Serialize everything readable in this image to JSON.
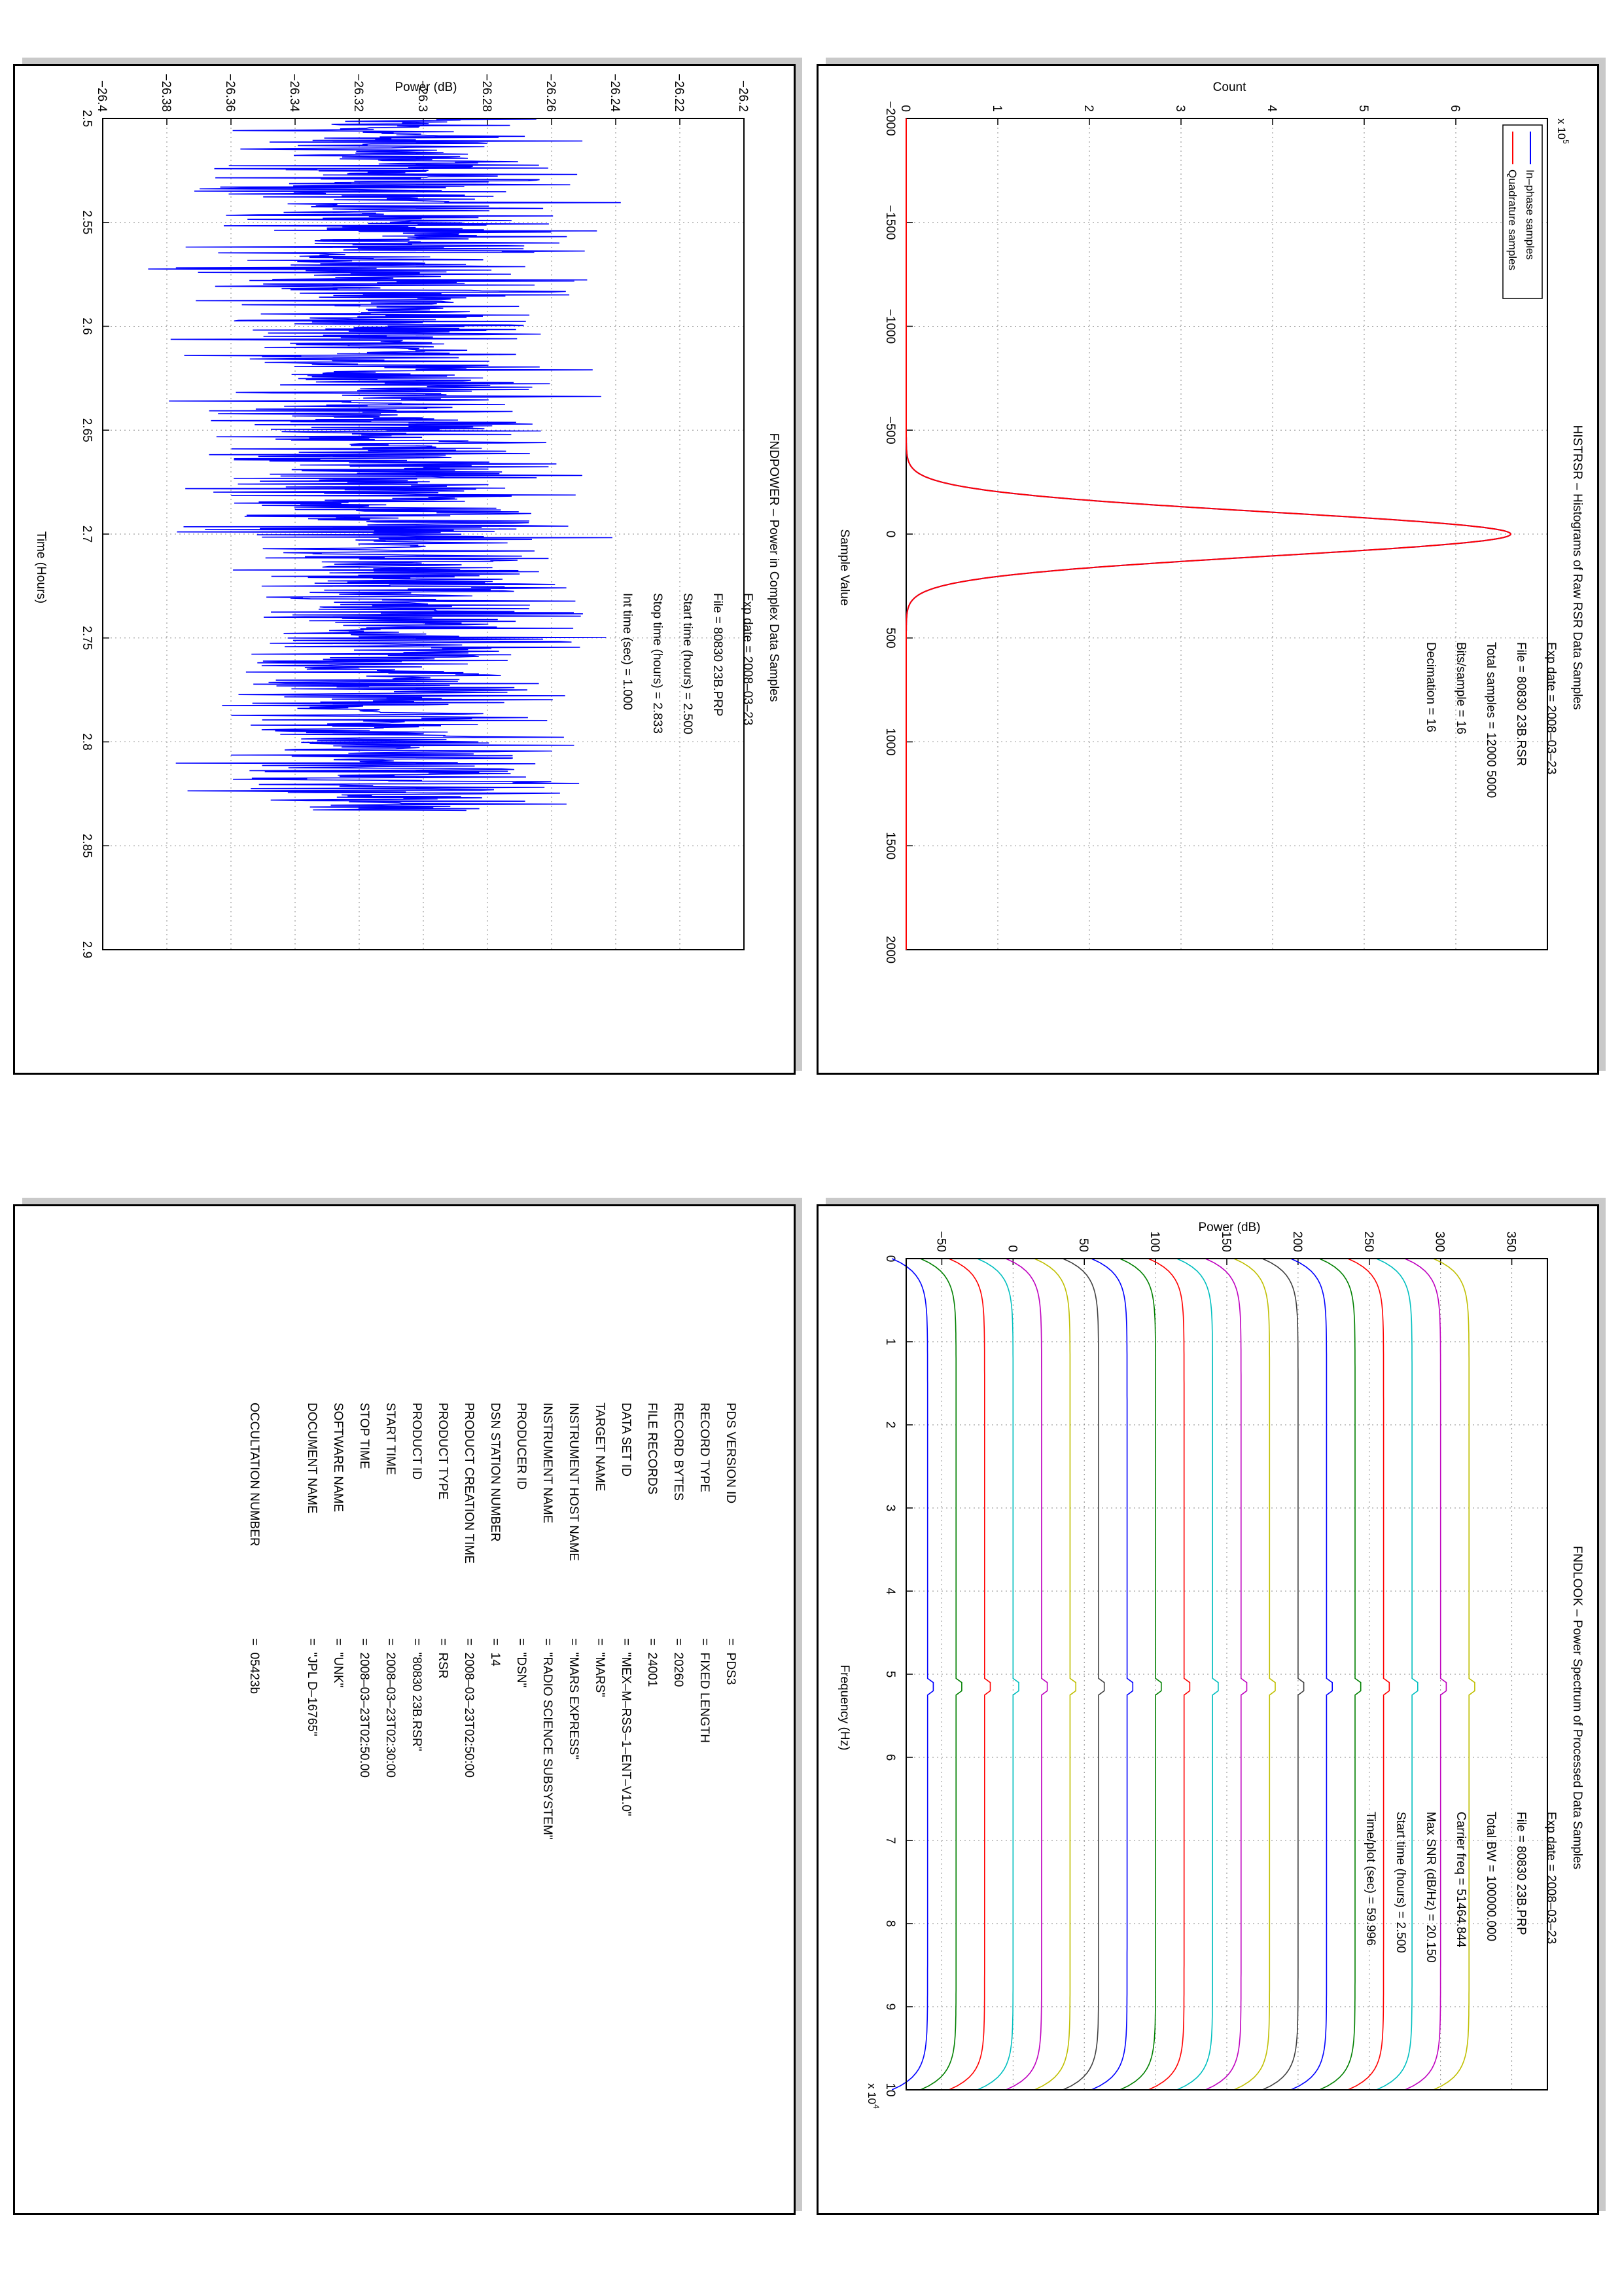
{
  "colors": {
    "inphase": "#0000ff",
    "quadrature": "#ff0000",
    "power": "#0000ff",
    "spectrum_series": [
      "#0000ff",
      "#008000",
      "#ff0000",
      "#00bfbf",
      "#bf00bf",
      "#bfbf00",
      "#404040",
      "#0000ff",
      "#008000",
      "#ff0000",
      "#00bfbf",
      "#bf00bf",
      "#bfbf00",
      "#404040",
      "#0000ff",
      "#008000",
      "#ff0000",
      "#00bfbf",
      "#bf00bf",
      "#bfbf00"
    ]
  },
  "histogram": {
    "title": "HISTRSR – Histograms of Raw RSR Data Samples",
    "xlabel": "Sample Value",
    "ylabel": "Count",
    "exponent": "x 10",
    "exponent_power": "5",
    "xticks": [
      "−2000",
      "−1500",
      "−1000",
      "−500",
      "0",
      "500",
      "1000",
      "1500",
      "2000"
    ],
    "yticks": [
      "0",
      "1",
      "2",
      "3",
      "4",
      "5",
      "6"
    ],
    "legend": [
      "In–phase samples",
      "Quadrature samples"
    ],
    "info": [
      "Exp date = 2008–03–23",
      "File = 80830 23B.RSR",
      "Total samples =  12000 5000",
      "Bits/sample   =        16",
      "Decimation    =        16"
    ]
  },
  "power_plot": {
    "title": "FNDPOWER – Power in Complex Data Samples",
    "xlabel": "Time (Hours)",
    "ylabel": "Power (dB)",
    "xticks": [
      "2.5",
      "2.55",
      "2.6",
      "2.65",
      "2.7",
      "2.75",
      "2.8",
      "2.85",
      "2.9"
    ],
    "yticks": [
      "−26.4",
      "−26.38",
      "−26.36",
      "−26.34",
      "−26.32",
      "−26.3",
      "−26.28",
      "−26.26",
      "−26.24",
      "−26.22",
      "−26.2"
    ],
    "info": [
      "Exp date = 2008–03–23",
      "File = 80830 23B.PRP",
      "Start time (hours) =   2.500",
      "Stop time (hours) =   2.833",
      "Int time (sec) =      1.000"
    ]
  },
  "spectrum": {
    "title": "FNDLOOK – Power Spectrum of Processed Data Samples",
    "xlabel": "Frequency (Hz)",
    "ylabel": "Power (dB)",
    "exponent": "x 10",
    "exponent_power": "4",
    "xticks": [
      "0",
      "1",
      "2",
      "3",
      "4",
      "5",
      "6",
      "7",
      "8",
      "9",
      "10"
    ],
    "yticks": [
      "−50",
      "0",
      "50",
      "100",
      "150",
      "200",
      "250",
      "300",
      "350"
    ],
    "info": [
      "Exp date = 2008–03–23",
      "File = 80830 23B.PRP",
      "Total BW =    100000.000",
      "Carrier freq =  51464.844",
      "Max SNR (dB/Hz) =   20.150",
      "Start time (hours) =   2.500",
      "Time/plot (sec) =      59.996"
    ]
  },
  "label_table": {
    "rows": [
      {
        "key": "PDS VERSION ID",
        "val": "=  PDS3"
      },
      {
        "key": "RECORD TYPE",
        "val": "=  FIXED LENGTH"
      },
      {
        "key": "RECORD BYTES",
        "val": "=  20260"
      },
      {
        "key": "FILE RECORDS",
        "val": "=  24001"
      },
      {
        "key": "DATA SET ID",
        "val": "=  \"MEX–M–RSS–1–ENT–V1.0\""
      },
      {
        "key": "TARGET NAME",
        "val": "=  \"MARS\""
      },
      {
        "key": "INSTRUMENT HOST NAME",
        "val": "=  \"MARS EXPRESS\""
      },
      {
        "key": "INSTRUMENT NAME",
        "val": "=  \"RADIO SCIENCE SUBSYSTEM\""
      },
      {
        "key": "PRODUCER ID",
        "val": "=  \"DSN\""
      },
      {
        "key": "DSN STATION NUMBER",
        "val": "=  14"
      },
      {
        "key": "PRODUCT CREATION TIME",
        "val": "=  2008–03–23T02:50:00"
      },
      {
        "key": "PRODUCT TYPE",
        "val": "=  RSR"
      },
      {
        "key": "PRODUCT ID",
        "val": "=  \"80830 23B.RSR\""
      },
      {
        "key": "START TIME",
        "val": "=  2008–03–23T02:30:00"
      },
      {
        "key": "STOP TIME",
        "val": "=  2008–03–23T02:50.00"
      },
      {
        "key": "SOFTWARE NAME",
        "val": "=  \"UNK\""
      },
      {
        "key": "DOCUMENT NAME",
        "val": "=  \"JPL D–16765\""
      },
      {
        "key": "OCCULTATION NUMBER",
        "val": "=  05423b"
      }
    ]
  },
  "chart_data": [
    {
      "type": "line",
      "title": "HISTRSR – Histograms of Raw RSR Data Samples",
      "xlabel": "Sample Value",
      "ylabel": "Count",
      "xlim": [
        -2000,
        2000
      ],
      "ylim": [
        0,
        700000
      ],
      "series": [
        {
          "name": "In–phase samples",
          "x": [
            -2000,
            -300,
            -200,
            -100,
            0,
            100,
            200,
            300,
            2000
          ],
          "values": [
            0,
            2000,
            60000,
            380000,
            660000,
            380000,
            60000,
            2000,
            0
          ]
        },
        {
          "name": "Quadrature samples",
          "x": [
            -2000,
            -300,
            -200,
            -100,
            0,
            100,
            200,
            300,
            2000
          ],
          "values": [
            0,
            2000,
            60000,
            380000,
            660000,
            380000,
            60000,
            2000,
            0
          ]
        }
      ],
      "legend_position": "top-left",
      "grid": true
    },
    {
      "type": "line",
      "title": "FNDPOWER – Power in Complex Data Samples",
      "xlabel": "Time (Hours)",
      "ylabel": "Power (dB)",
      "xlim": [
        2.5,
        2.9
      ],
      "ylim": [
        -26.4,
        -26.2
      ],
      "series": [
        {
          "name": "",
          "x_range": [
            2.5,
            2.833
          ],
          "mean": -26.31,
          "spread": 0.08
        }
      ],
      "grid": true
    },
    {
      "type": "line",
      "title": "FNDLOOK – Power Spectrum of Processed Data Samples",
      "xlabel": "Frequency (Hz)",
      "ylabel": "Power (dB)",
      "xlim": [
        0,
        100000
      ],
      "ylim": [
        -75,
        375
      ],
      "series_levels": [
        -60,
        -40,
        -20,
        0,
        20,
        40,
        60,
        80,
        100,
        120,
        140,
        160,
        180,
        200,
        220,
        240,
        260,
        280,
        300,
        320
      ],
      "grid": true
    }
  ]
}
